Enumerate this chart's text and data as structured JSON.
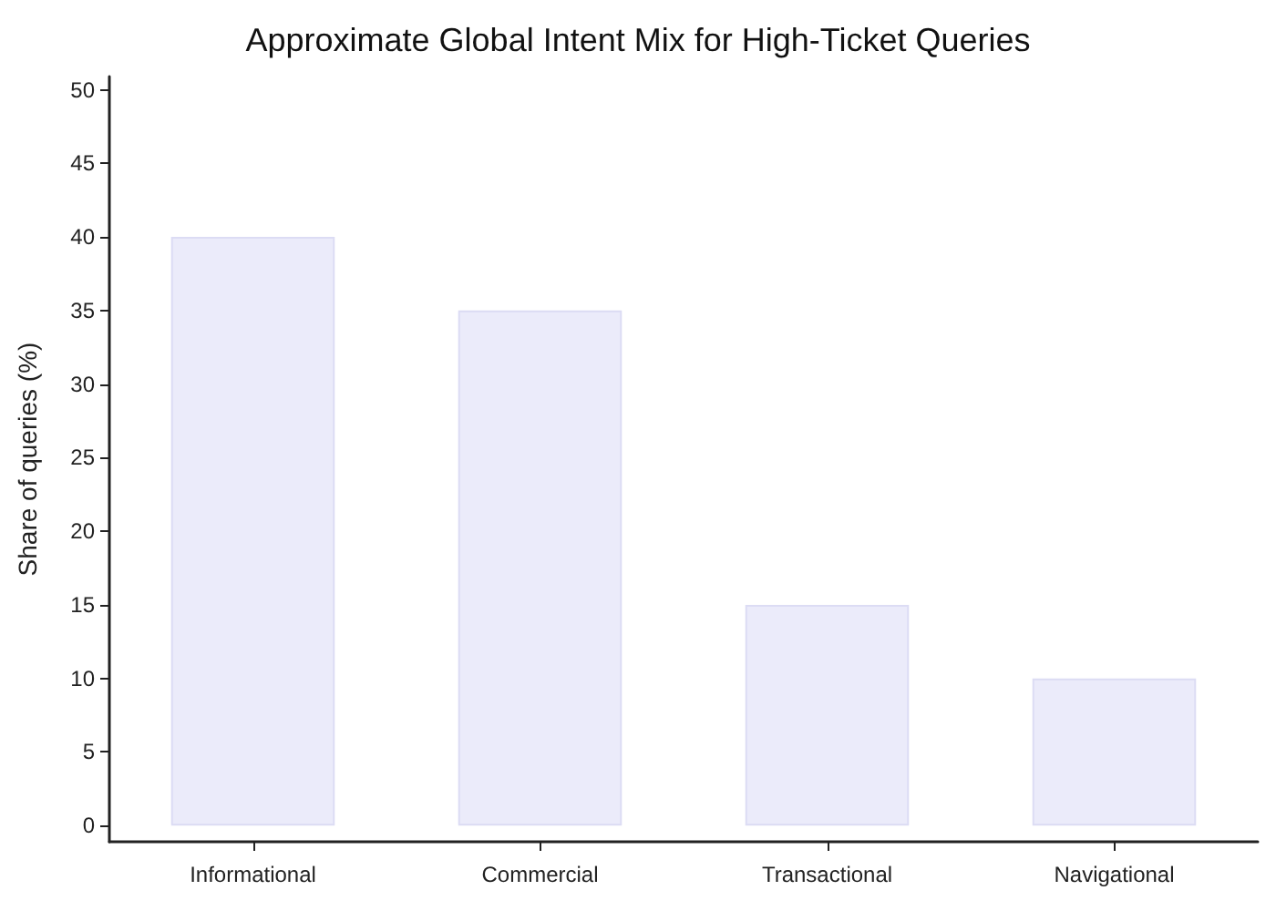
{
  "chart_data": {
    "type": "bar",
    "title": "Approximate Global Intent Mix for High-Ticket Queries",
    "ylabel": "Share of queries (%)",
    "categories": [
      "Informational",
      "Commercial",
      "Transactional",
      "Navigational"
    ],
    "values": [
      40,
      35,
      15,
      10
    ],
    "color": "#ebebfa",
    "ylim": [
      -1.1,
      50.9
    ],
    "yticks": [
      0,
      5,
      10,
      15,
      20,
      25,
      30,
      35,
      40,
      45,
      50
    ],
    "grid": false
  }
}
